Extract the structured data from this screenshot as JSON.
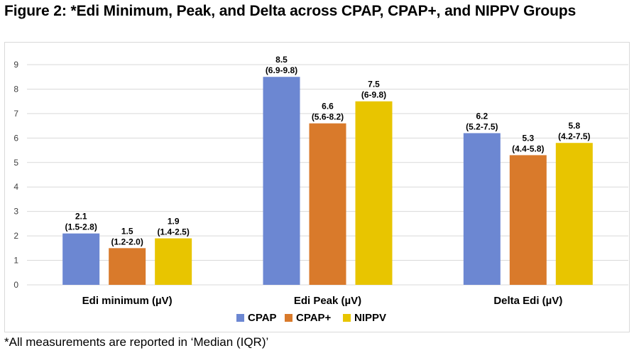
{
  "title": "Figure 2: *Edi Minimum, Peak, and Delta across CPAP, CPAP+, and NIPPV Groups",
  "footnote": "*All measurements are reported in ‘Median (IQR)’",
  "colors": {
    "CPAP": "#6c87d2",
    "CPAP+": "#d97a2b",
    "NIPPV": "#e8c500"
  },
  "chart_data": {
    "type": "bar",
    "categories": [
      "Edi minimum (µV)",
      "Edi Peak (µV)",
      "Delta Edi (µV)"
    ],
    "series": [
      {
        "name": "CPAP",
        "values": [
          2.1,
          8.5,
          6.2
        ],
        "labels": [
          "(1.5-2.8)",
          "(6.9-9.8)",
          "(5.2-7.5)"
        ]
      },
      {
        "name": "CPAP+",
        "values": [
          1.5,
          6.6,
          5.3
        ],
        "labels": [
          "(1.2-2.0)",
          "(5.6-8.2)",
          "(4.4-5.8)"
        ]
      },
      {
        "name": "NIPPV",
        "values": [
          1.9,
          7.5,
          5.8
        ],
        "labels": [
          "(1.4-2.5)",
          "(6-9.8)",
          "(4.2-7.5)"
        ]
      }
    ],
    "yticks": [
      0,
      1,
      2,
      3,
      4,
      5,
      6,
      7,
      8,
      9
    ],
    "ylim": [
      0,
      9
    ],
    "grid": true,
    "legend": "bottom"
  }
}
